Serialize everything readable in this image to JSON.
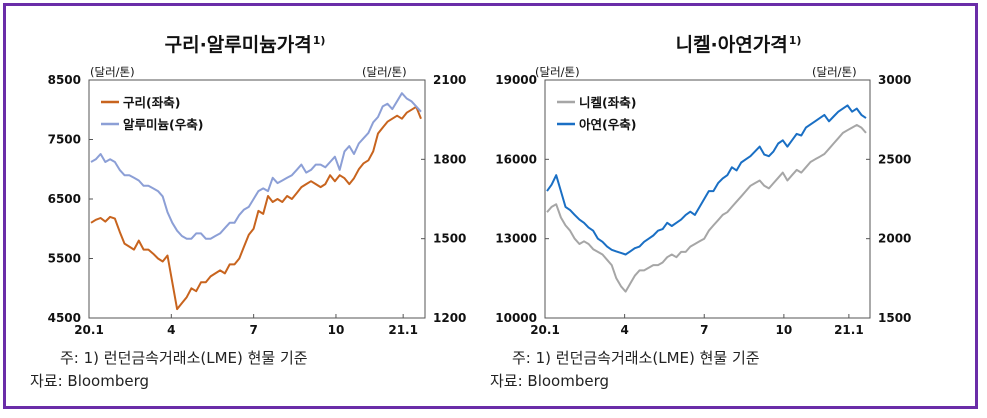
{
  "notes": {
    "note1": "주: 1) 런던금속거래소(LME) 현물 기준",
    "source": "자료: Bloomberg"
  },
  "chart_data": [
    {
      "type": "line",
      "title": "구리·알루미늄가격",
      "title_sup": "1)",
      "left_unit": "(달러/톤)",
      "right_unit": "(달러/톤)",
      "x_ticks": [
        "20.1",
        "4",
        "7",
        "10",
        "21.1"
      ],
      "y_left": {
        "ticks": [
          4500,
          5500,
          6500,
          7500,
          8500
        ],
        "range": [
          4500,
          8500
        ]
      },
      "y_right": {
        "ticks": [
          1200,
          1500,
          1800,
          2100
        ],
        "range": [
          1200,
          2100
        ]
      },
      "legend_position": "top-left",
      "series": [
        {
          "name": "구리(좌축)",
          "axis": "left",
          "color": "#c8641e",
          "values": [
            6100,
            6150,
            6180,
            6120,
            6200,
            6170,
            5950,
            5750,
            5700,
            5650,
            5800,
            5650,
            5650,
            5580,
            5500,
            5450,
            5550,
            5100,
            4650,
            4750,
            4850,
            5000,
            4950,
            5100,
            5100,
            5200,
            5250,
            5300,
            5250,
            5400,
            5400,
            5500,
            5700,
            5900,
            6000,
            6300,
            6250,
            6550,
            6450,
            6500,
            6450,
            6550,
            6500,
            6600,
            6700,
            6750,
            6800,
            6750,
            6700,
            6750,
            6900,
            6800,
            6900,
            6850,
            6750,
            6850,
            7000,
            7100,
            7150,
            7300,
            7600,
            7700,
            7800,
            7850,
            7900,
            7850,
            7950,
            8000,
            8050,
            7850
          ]
        },
        {
          "name": "알루미늄(우축)",
          "axis": "right",
          "color": "#8c9fd6",
          "values": [
            1790,
            1800,
            1820,
            1790,
            1800,
            1790,
            1760,
            1740,
            1740,
            1730,
            1720,
            1700,
            1700,
            1690,
            1680,
            1660,
            1600,
            1560,
            1530,
            1510,
            1500,
            1500,
            1520,
            1520,
            1500,
            1500,
            1510,
            1520,
            1540,
            1560,
            1560,
            1590,
            1610,
            1620,
            1650,
            1680,
            1690,
            1680,
            1730,
            1710,
            1720,
            1730,
            1740,
            1760,
            1780,
            1750,
            1760,
            1780,
            1780,
            1770,
            1790,
            1810,
            1760,
            1830,
            1850,
            1820,
            1860,
            1880,
            1900,
            1940,
            1960,
            2000,
            2010,
            1990,
            2020,
            2050,
            2030,
            2020,
            2000,
            1980
          ]
        }
      ]
    },
    {
      "type": "line",
      "title": "니켈·아연가격",
      "title_sup": "1)",
      "left_unit": "(달러/톤)",
      "right_unit": "(달러/톤)",
      "x_ticks": [
        "20.1",
        "4",
        "7",
        "10",
        "21.1"
      ],
      "y_left": {
        "ticks": [
          10000,
          13000,
          16000,
          19000
        ],
        "range": [
          10000,
          19000
        ]
      },
      "y_right": {
        "ticks": [
          1500,
          2000,
          2500,
          3000
        ],
        "range": [
          1500,
          3000
        ]
      },
      "legend_position": "top-left",
      "series": [
        {
          "name": "니켈(좌축)",
          "axis": "left",
          "color": "#a6a6a6",
          "values": [
            14000,
            14200,
            14300,
            13800,
            13500,
            13300,
            13000,
            12800,
            12900,
            12800,
            12600,
            12500,
            12400,
            12200,
            12000,
            11500,
            11200,
            11000,
            11300,
            11600,
            11800,
            11800,
            11900,
            12000,
            12000,
            12100,
            12300,
            12400,
            12300,
            12500,
            12500,
            12700,
            12800,
            12900,
            13000,
            13300,
            13500,
            13700,
            13900,
            14000,
            14200,
            14400,
            14600,
            14800,
            15000,
            15100,
            15200,
            15000,
            14900,
            15100,
            15300,
            15500,
            15200,
            15400,
            15600,
            15500,
            15700,
            15900,
            16000,
            16100,
            16200,
            16400,
            16600,
            16800,
            17000,
            17100,
            17200,
            17300,
            17200,
            17000
          ]
        },
        {
          "name": "아연(우축)",
          "axis": "right",
          "color": "#1a6fc4",
          "values": [
            2300,
            2340,
            2400,
            2300,
            2200,
            2180,
            2150,
            2120,
            2100,
            2070,
            2050,
            2000,
            1980,
            1950,
            1930,
            1920,
            1910,
            1900,
            1920,
            1940,
            1950,
            1980,
            2000,
            2020,
            2050,
            2060,
            2100,
            2080,
            2100,
            2120,
            2150,
            2170,
            2150,
            2200,
            2250,
            2300,
            2300,
            2350,
            2380,
            2400,
            2450,
            2430,
            2480,
            2500,
            2520,
            2550,
            2580,
            2530,
            2520,
            2550,
            2600,
            2620,
            2580,
            2620,
            2660,
            2650,
            2700,
            2720,
            2740,
            2760,
            2780,
            2740,
            2770,
            2800,
            2820,
            2840,
            2800,
            2820,
            2780,
            2760
          ]
        }
      ]
    }
  ]
}
